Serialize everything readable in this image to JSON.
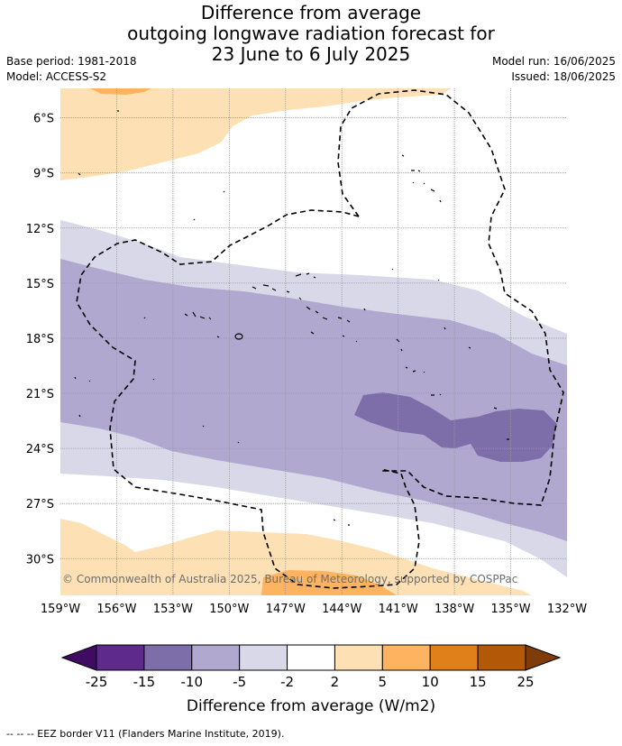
{
  "header": {
    "title_lines": [
      "Difference from average",
      "outgoing longwave radiation forecast for",
      "23 June to 6 July 2025"
    ],
    "base_period": "Base period: 1981-2018",
    "model": "Model: ACCESS-S2",
    "model_run": "Model run: 16/06/2025",
    "issued": "Issued: 18/06/2025"
  },
  "map": {
    "lon_range": [
      -159,
      -132
    ],
    "lat_range": [
      -32,
      -4.4
    ],
    "x_ticks": [
      {
        "value": -159,
        "label": "159°W"
      },
      {
        "value": -156,
        "label": "156°W"
      },
      {
        "value": -153,
        "label": "153°W"
      },
      {
        "value": -150,
        "label": "150°W"
      },
      {
        "value": -147,
        "label": "147°W"
      },
      {
        "value": -144,
        "label": "144°W"
      },
      {
        "value": -141,
        "label": "141°W"
      },
      {
        "value": -138,
        "label": "138°W"
      },
      {
        "value": -135,
        "label": "135°W"
      },
      {
        "value": -132,
        "label": "132°W"
      }
    ],
    "y_ticks": [
      {
        "value": -6,
        "label": "6°S"
      },
      {
        "value": -9,
        "label": "9°S"
      },
      {
        "value": -12,
        "label": "12°S"
      },
      {
        "value": -15,
        "label": "15°S"
      },
      {
        "value": -18,
        "label": "18°S"
      },
      {
        "value": -21,
        "label": "21°S"
      },
      {
        "value": -24,
        "label": "24°S"
      },
      {
        "value": -27,
        "label": "27°S"
      },
      {
        "value": -30,
        "label": "30°S"
      }
    ],
    "grid": true,
    "copyright": "© Commonwealth of Australia 2025, Bureau of Meteorology, supported by COSPPac",
    "contour_colors": {
      "lt_minus25": "#3f0b63",
      "m25_m15": "#5e2a8b",
      "m15_m10": "#7d6da9",
      "m10_m5": "#b1a8d0",
      "m5_m2": "#d9d8e9",
      "m2_2": "#ffffff",
      "2_5": "#fde0b4",
      "5_10": "#fdb35f",
      "10_15": "#e0801b",
      "15_25": "#b35806",
      "gt_25": "#7f3b08"
    }
  },
  "colorbar": {
    "tick_labels": [
      "-25",
      "-15",
      "-10",
      "-5",
      "-2",
      "2",
      "5",
      "10",
      "15",
      "25"
    ],
    "colors": [
      "#5e2a8b",
      "#7d6da9",
      "#b1a8d0",
      "#d9d8e9",
      "#ffffff",
      "#fde0b4",
      "#fdb35f",
      "#e0801b",
      "#b35806"
    ],
    "under_color": "#3f0b63",
    "over_color": "#7f3b08",
    "label": "Difference from average (W/m2)"
  },
  "footnote": "--  --  -- EEZ border V11 (Flanders Marine Institute, 2019)."
}
